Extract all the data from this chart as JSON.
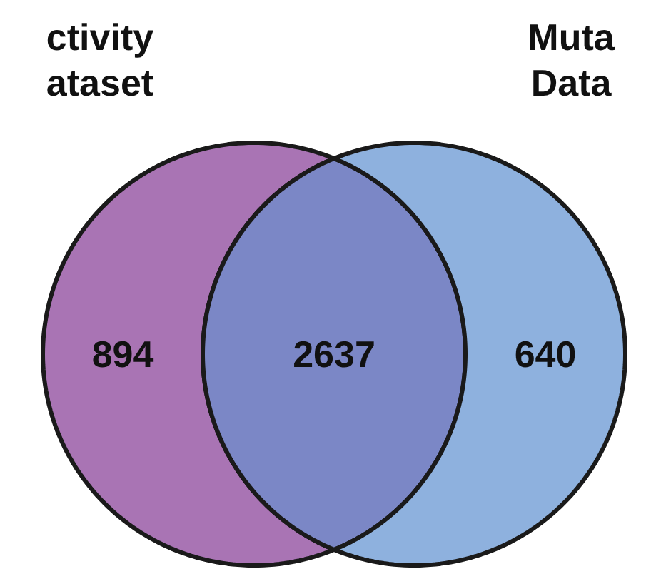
{
  "chart_data": {
    "type": "other",
    "categories": [
      "ctivity\nataset",
      null,
      "Muta\nData"
    ],
    "values": [
      894,
      2637,
      640
    ],
    "colors": [
      "#a974b4",
      "#7b87c6",
      "#8eb1de"
    ],
    "data_labels": true
  }
}
